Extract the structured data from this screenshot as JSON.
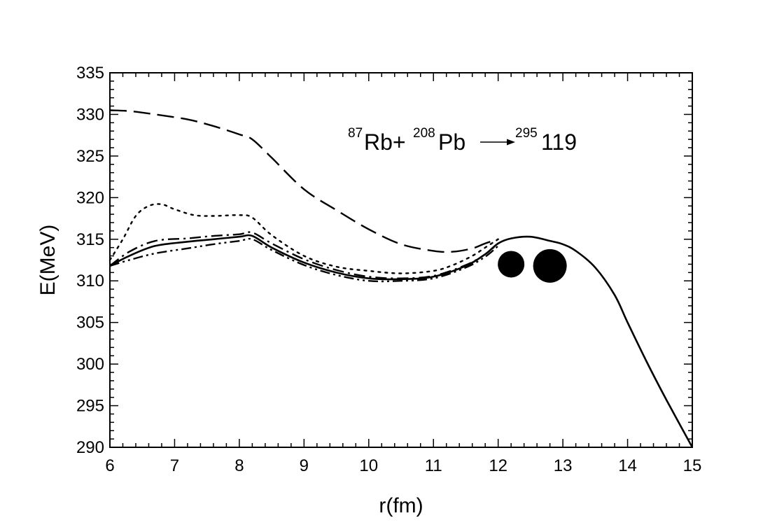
{
  "chart_data": {
    "type": "line",
    "title": "",
    "xlabel": "r(fm)",
    "ylabel": "E(MeV)",
    "xlim": [
      6,
      15
    ],
    "ylim": [
      290,
      335
    ],
    "xticks": [
      "6",
      "7",
      "8",
      "9",
      "10",
      "11",
      "12",
      "13",
      "14",
      "15"
    ],
    "yticks": [
      "290",
      "295",
      "300",
      "305",
      "310",
      "315",
      "320",
      "325",
      "330",
      "335"
    ],
    "grid": false,
    "legend": "none",
    "annotation": {
      "sup1": "87",
      "el1": "Rb+",
      "sup2": "208",
      "el2": "Pb",
      "sup3": "295",
      "el3": "119"
    },
    "nuclei_markers": [
      {
        "x": 12.2,
        "y": 312.0
      },
      {
        "x": 12.8,
        "y": 311.8
      }
    ],
    "series": [
      {
        "style": "solid",
        "x": [
          6.0,
          6.3,
          6.7,
          7.2,
          7.6,
          8.0,
          8.2,
          8.5,
          9.0,
          9.5,
          10.0,
          10.5,
          11.0,
          11.5,
          11.8,
          12.0,
          12.2,
          12.5,
          12.8,
          13.0,
          13.2,
          13.5,
          13.8,
          14.0,
          14.3,
          14.6,
          15.0
        ],
        "y": [
          311.8,
          313.0,
          314.2,
          314.7,
          315.0,
          315.3,
          315.4,
          314.0,
          312.2,
          311.0,
          310.3,
          310.2,
          310.5,
          311.8,
          313.2,
          314.5,
          315.1,
          315.3,
          314.8,
          314.4,
          313.6,
          311.6,
          308.3,
          305.0,
          300.2,
          295.7,
          290.0
        ]
      },
      {
        "style": "dash",
        "x": [
          6.0,
          6.3,
          6.7,
          7.2,
          7.6,
          8.0,
          8.2,
          8.5,
          9.0,
          9.5,
          10.0,
          10.5,
          11.0,
          11.3,
          11.6,
          11.8,
          12.0
        ],
        "y": [
          330.5,
          330.4,
          330.0,
          329.4,
          328.6,
          327.6,
          327.0,
          324.8,
          321.0,
          318.5,
          316.2,
          314.4,
          313.6,
          313.5,
          313.9,
          314.5,
          315.0
        ]
      },
      {
        "style": "dot",
        "x": [
          6.0,
          6.2,
          6.4,
          6.6,
          6.8,
          7.0,
          7.3,
          7.6,
          8.0,
          8.2,
          8.5,
          9.0,
          9.5,
          10.0,
          10.5,
          11.0,
          11.3,
          11.6,
          11.8,
          12.0
        ],
        "y": [
          312.5,
          315.0,
          317.8,
          319.0,
          319.2,
          318.6,
          317.9,
          317.8,
          317.9,
          317.6,
          315.5,
          313.0,
          311.7,
          311.2,
          310.9,
          311.2,
          311.9,
          313.0,
          314.0,
          315.0
        ]
      },
      {
        "style": "dashdot",
        "x": [
          6.0,
          6.3,
          6.7,
          7.2,
          7.6,
          8.0,
          8.2,
          8.5,
          9.0,
          9.5,
          10.0,
          10.5,
          11.0,
          11.5,
          11.8,
          12.0
        ],
        "y": [
          311.8,
          313.5,
          314.8,
          315.1,
          315.4,
          315.6,
          315.8,
          314.5,
          312.6,
          311.3,
          310.5,
          310.3,
          310.6,
          311.9,
          313.2,
          314.5
        ]
      },
      {
        "style": "dashdotdot",
        "x": [
          6.0,
          6.3,
          6.7,
          7.2,
          7.6,
          8.0,
          8.2,
          8.5,
          9.0,
          9.5,
          10.0,
          10.5,
          11.0,
          11.5,
          11.8,
          12.0
        ],
        "y": [
          311.8,
          312.5,
          313.3,
          313.9,
          314.4,
          314.8,
          315.0,
          313.7,
          311.9,
          310.7,
          310.0,
          310.0,
          310.3,
          311.6,
          312.9,
          314.2
        ]
      }
    ]
  }
}
